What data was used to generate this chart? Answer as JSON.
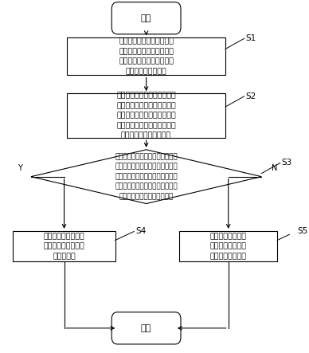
{
  "bg_color": "#ffffff",
  "line_color": "#000000",
  "text_color": "#000000",
  "font_size": 7.0,
  "small_font_size": 6.8,
  "tag_font_size": 7.5,
  "start_label": "开始",
  "end_label": "结束",
  "s1_label": "加载初始离线地图，并对所\n述扫地机进行重定位，得到\n所述扫地机在所述初始离线\n地图的第一当前位置",
  "s2_label": "采集预设数量的第一激光雷达\n数据，并基于所述第一当前位\n置结合所述初始离线地图的初\n始概率栅格地图进行建图，得\n到第一当前概率栅格地图",
  "s3_label": "将所述第一当前概率栅格地图和所\n述初始概率栅格地图按照对应的栅\n格坐标进行逐一比对，判断所述第\n一当前概率栅格地图中是否存在栅\n格概率值变化的栅格坐标区域",
  "s4_label": "将所述栅格坐标区域\n的中心栅格坐标设置\n为空白位置",
  "s5_label": "将所述栅格坐标区\n域的中心栅格坐标\n设置为障碍物位置",
  "y_label": "Y",
  "n_label": "N",
  "figsize": [
    3.88,
    4.43
  ],
  "dpi": 100
}
